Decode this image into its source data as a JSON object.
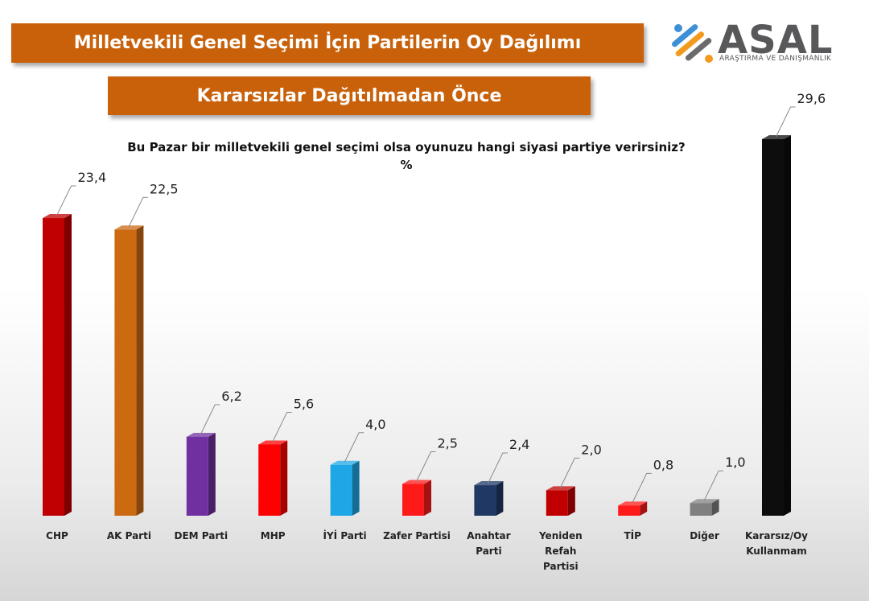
{
  "header": {
    "title": "Milletvekili Genel Seçimi İçin Partilerin Oy Dağılımı",
    "subtitle": "Kararsızlar Dağıtılmadan Önce"
  },
  "logo": {
    "brand": "ASAL",
    "tagline": "ARAŞTIRMA VE DANIŞMANLIK",
    "icon": "asal-logo-mark"
  },
  "question": {
    "text": "Bu Pazar bir milletvekili genel seçimi olsa oyunuzu hangi siyasi partiye verirsiniz?",
    "unit": "%"
  },
  "chart_data": {
    "type": "bar",
    "title": "Milletvekili Genel Seçimi İçin Partilerin Oy Dağılımı",
    "subtitle": "Kararsızlar Dağıtılmadan Önce",
    "ylabel": "%",
    "ylim": [
      0,
      30
    ],
    "grid": false,
    "categories": [
      "CHP",
      "AK Parti",
      "DEM Parti",
      "MHP",
      "İYİ Parti",
      "Zafer Partisi",
      "Anahtar Parti",
      "Yeniden Refah Partisi",
      "TİP",
      "Diğer",
      "Kararsız/Oy Kullanmam"
    ],
    "category_lines": [
      [
        "CHP"
      ],
      [
        "AK Parti"
      ],
      [
        "DEM Parti"
      ],
      [
        "MHP"
      ],
      [
        "İYİ Parti"
      ],
      [
        "Zafer Partisi"
      ],
      [
        "Anahtar",
        "Parti"
      ],
      [
        "Yeniden",
        "Refah",
        "Partisi"
      ],
      [
        "TİP"
      ],
      [
        "Diğer"
      ],
      [
        "Kararsız/Oy",
        "Kullanmam"
      ]
    ],
    "values": [
      23.4,
      22.5,
      6.2,
      5.6,
      4.0,
      2.5,
      2.4,
      2.0,
      0.8,
      1.0,
      29.6
    ],
    "value_labels": [
      "23,4",
      "22,5",
      "6,2",
      "5,6",
      "4,0",
      "2,5",
      "2,4",
      "2,0",
      "0,8",
      "1,0",
      "29,6"
    ],
    "colors": [
      "#c00000",
      "#cc6a12",
      "#7030a0",
      "#ff0000",
      "#1ea7e6",
      "#ff1a1a",
      "#1f3864",
      "#c00000",
      "#ff1a1a",
      "#808080",
      "#0d0d0d"
    ]
  }
}
